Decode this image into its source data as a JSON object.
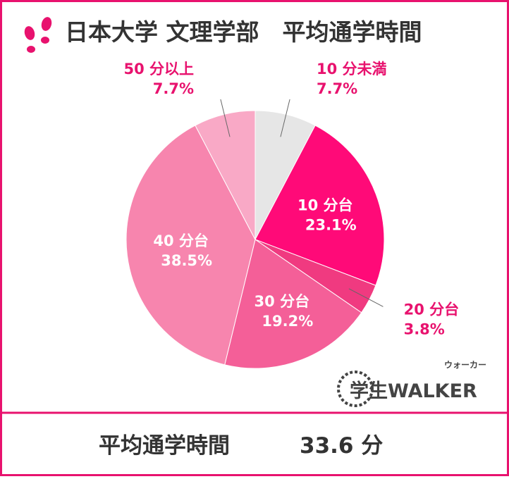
{
  "chart_data": {
    "type": "pie",
    "title": "日本大学 文理学部　平均通学時間",
    "categories": [
      "10 分未満",
      "10 分台",
      "20 分台",
      "30 分台",
      "40 分台",
      "50 分以上"
    ],
    "values": [
      7.7,
      23.1,
      3.8,
      19.2,
      38.5,
      7.7
    ],
    "value_labels": [
      "7.7%",
      "23.1%",
      "3.8%",
      "19.2%",
      "38.5%",
      "7.7%"
    ],
    "colors": [
      "#e6e6e6",
      "#ff0a78",
      "#f03a80",
      "#f45f98",
      "#f785ae",
      "#f9a9c6"
    ]
  },
  "logo": {
    "text": "学生WALKER",
    "ruby": "ウォーカー"
  },
  "footer": {
    "label": "平均通学時間",
    "value": "33.6 分"
  }
}
